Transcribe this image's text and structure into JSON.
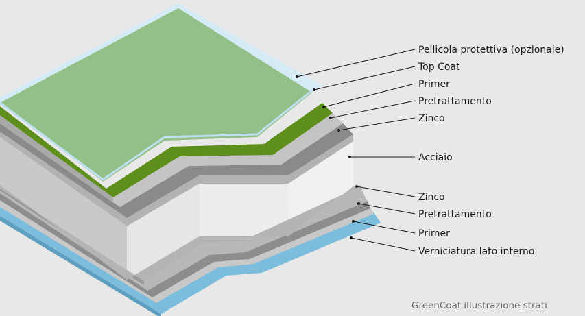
{
  "labels": {
    "pellicola": "Pellicola protettiva (opzionale)",
    "top_coat": "Top Coat",
    "primer_top": "Primer",
    "pretrattamento_top": "Pretrattamento",
    "zinco_top": "Zinco",
    "acciaio": "Acciaio",
    "zinco_bottom": "Zinco",
    "pretrattamento_bottom": "Pretrattamento",
    "primer_bottom": "Primer",
    "verniciatura": "Verniciatura lato interno"
  },
  "caption": "GreenCoat illustrazione strati",
  "colors": {
    "background": "#e8e8e8",
    "protective_film": "#cfe6f2",
    "green_surface": "#93bf88",
    "top_coat_green": "#5e8f1c",
    "primer_grey": "#bdbdbd",
    "pretreatment_grey": "#8f8f8f",
    "zinc_grey": "#b5b5b5",
    "steel": "#ececec",
    "bottom_paint_blue": "#7cbcdc"
  }
}
